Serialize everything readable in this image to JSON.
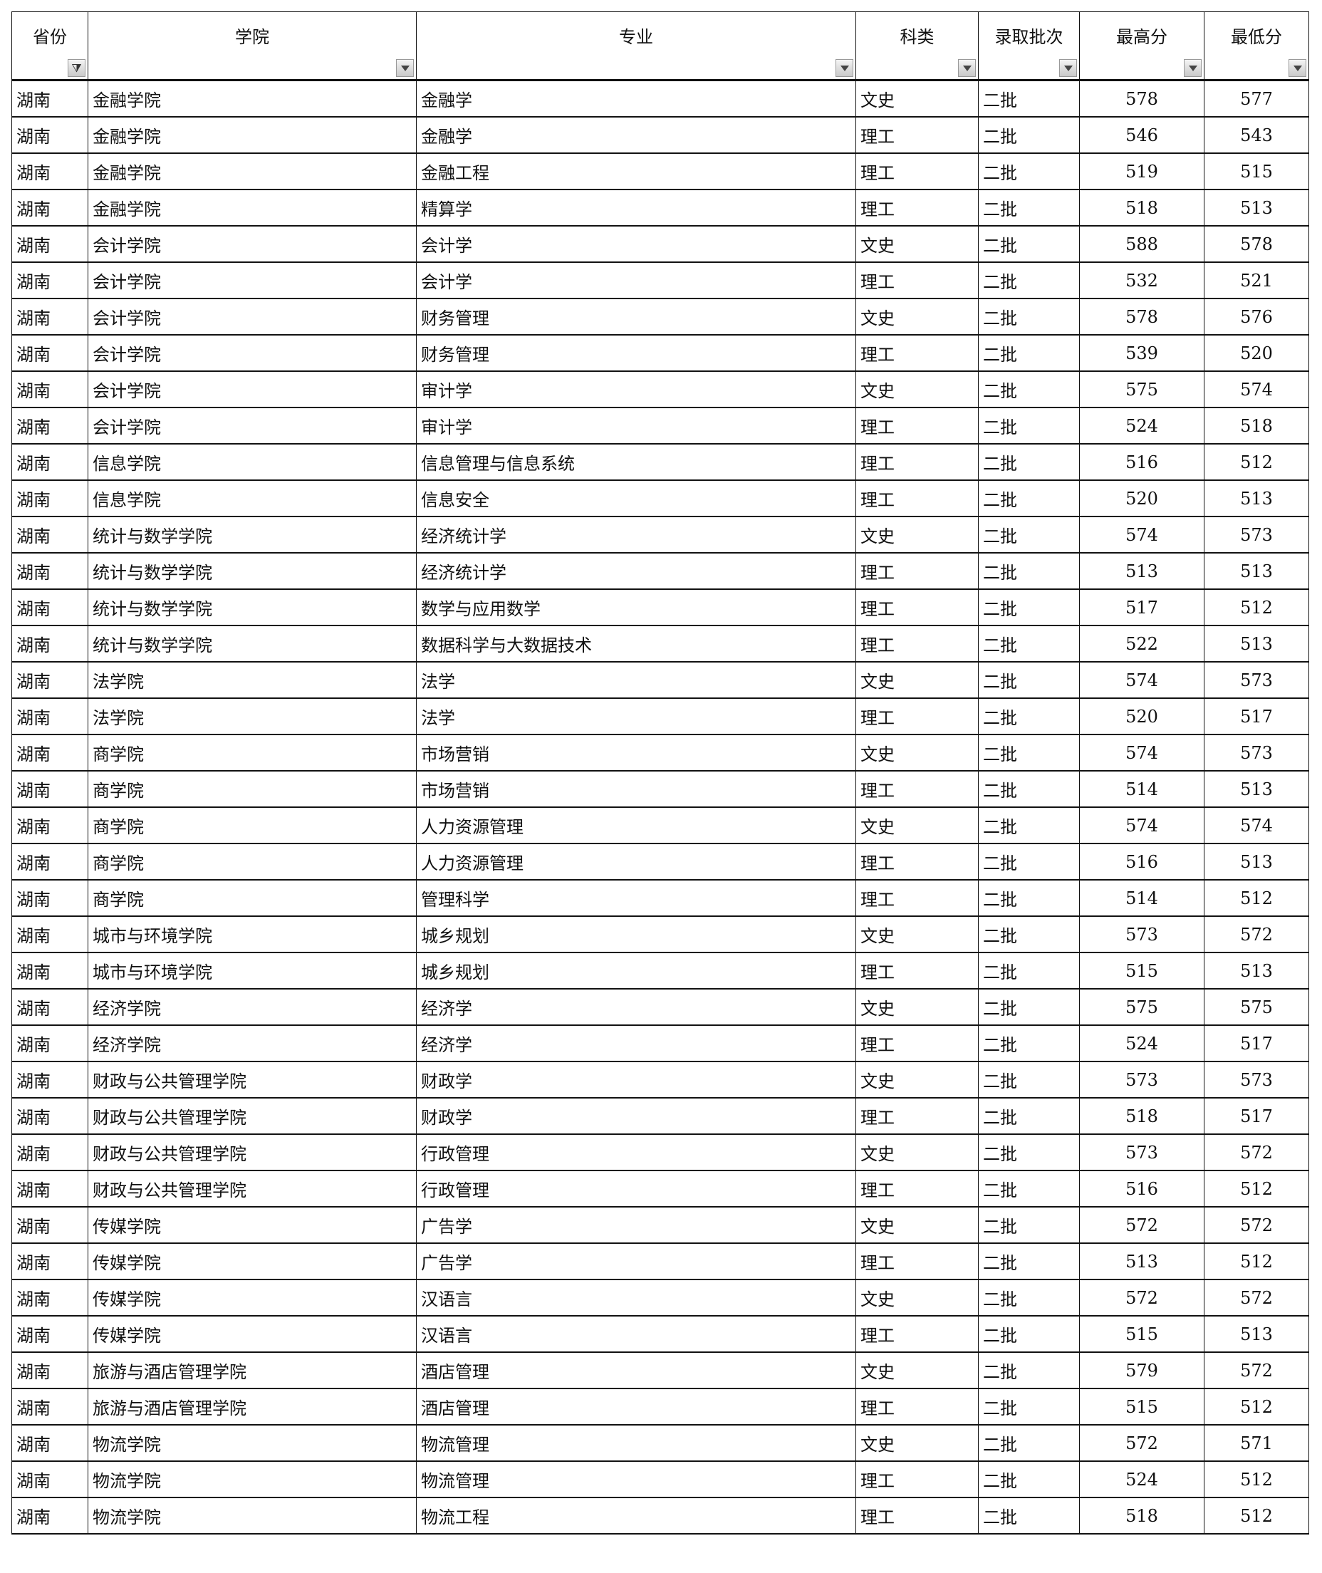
{
  "headers": [
    {
      "label": "省份",
      "filter": "active-filter-icon"
    },
    {
      "label": "学院",
      "filter": "dropdown-icon"
    },
    {
      "label": "专业",
      "filter": "dropdown-icon"
    },
    {
      "label": "科类",
      "filter": "dropdown-icon"
    },
    {
      "label": "录取批次",
      "filter": "dropdown-icon"
    },
    {
      "label": "最高分",
      "filter": "dropdown-icon"
    },
    {
      "label": "最低分",
      "filter": "dropdown-icon"
    }
  ],
  "rows": [
    [
      "湖南",
      "金融学院",
      "金融学",
      "文史",
      "二批",
      "578",
      "577"
    ],
    [
      "湖南",
      "金融学院",
      "金融学",
      "理工",
      "二批",
      "546",
      "543"
    ],
    [
      "湖南",
      "金融学院",
      "金融工程",
      "理工",
      "二批",
      "519",
      "515"
    ],
    [
      "湖南",
      "金融学院",
      "精算学",
      "理工",
      "二批",
      "518",
      "513"
    ],
    [
      "湖南",
      "会计学院",
      "会计学",
      "文史",
      "二批",
      "588",
      "578"
    ],
    [
      "湖南",
      "会计学院",
      "会计学",
      "理工",
      "二批",
      "532",
      "521"
    ],
    [
      "湖南",
      "会计学院",
      "财务管理",
      "文史",
      "二批",
      "578",
      "576"
    ],
    [
      "湖南",
      "会计学院",
      "财务管理",
      "理工",
      "二批",
      "539",
      "520"
    ],
    [
      "湖南",
      "会计学院",
      "审计学",
      "文史",
      "二批",
      "575",
      "574"
    ],
    [
      "湖南",
      "会计学院",
      "审计学",
      "理工",
      "二批",
      "524",
      "518"
    ],
    [
      "湖南",
      "信息学院",
      "信息管理与信息系统",
      "理工",
      "二批",
      "516",
      "512"
    ],
    [
      "湖南",
      "信息学院",
      "信息安全",
      "理工",
      "二批",
      "520",
      "513"
    ],
    [
      "湖南",
      "统计与数学学院",
      "经济统计学",
      "文史",
      "二批",
      "574",
      "573"
    ],
    [
      "湖南",
      "统计与数学学院",
      "经济统计学",
      "理工",
      "二批",
      "513",
      "513"
    ],
    [
      "湖南",
      "统计与数学学院",
      "数学与应用数学",
      "理工",
      "二批",
      "517",
      "512"
    ],
    [
      "湖南",
      "统计与数学学院",
      "数据科学与大数据技术",
      "理工",
      "二批",
      "522",
      "513"
    ],
    [
      "湖南",
      "法学院",
      "法学",
      "文史",
      "二批",
      "574",
      "573"
    ],
    [
      "湖南",
      "法学院",
      "法学",
      "理工",
      "二批",
      "520",
      "517"
    ],
    [
      "湖南",
      "商学院",
      "市场营销",
      "文史",
      "二批",
      "574",
      "573"
    ],
    [
      "湖南",
      "商学院",
      "市场营销",
      "理工",
      "二批",
      "514",
      "513"
    ],
    [
      "湖南",
      "商学院",
      "人力资源管理",
      "文史",
      "二批",
      "574",
      "574"
    ],
    [
      "湖南",
      "商学院",
      "人力资源管理",
      "理工",
      "二批",
      "516",
      "513"
    ],
    [
      "湖南",
      "商学院",
      "管理科学",
      "理工",
      "二批",
      "514",
      "512"
    ],
    [
      "湖南",
      "城市与环境学院",
      "城乡规划",
      "文史",
      "二批",
      "573",
      "572"
    ],
    [
      "湖南",
      "城市与环境学院",
      "城乡规划",
      "理工",
      "二批",
      "515",
      "513"
    ],
    [
      "湖南",
      "经济学院",
      "经济学",
      "文史",
      "二批",
      "575",
      "575"
    ],
    [
      "湖南",
      "经济学院",
      "经济学",
      "理工",
      "二批",
      "524",
      "517"
    ],
    [
      "湖南",
      "财政与公共管理学院",
      "财政学",
      "文史",
      "二批",
      "573",
      "573"
    ],
    [
      "湖南",
      "财政与公共管理学院",
      "财政学",
      "理工",
      "二批",
      "518",
      "517"
    ],
    [
      "湖南",
      "财政与公共管理学院",
      "行政管理",
      "文史",
      "二批",
      "573",
      "572"
    ],
    [
      "湖南",
      "财政与公共管理学院",
      "行政管理",
      "理工",
      "二批",
      "516",
      "512"
    ],
    [
      "湖南",
      "传媒学院",
      "广告学",
      "文史",
      "二批",
      "572",
      "572"
    ],
    [
      "湖南",
      "传媒学院",
      "广告学",
      "理工",
      "二批",
      "513",
      "512"
    ],
    [
      "湖南",
      "传媒学院",
      "汉语言",
      "文史",
      "二批",
      "572",
      "572"
    ],
    [
      "湖南",
      "传媒学院",
      "汉语言",
      "理工",
      "二批",
      "515",
      "513"
    ],
    [
      "湖南",
      "旅游与酒店管理学院",
      "酒店管理",
      "文史",
      "二批",
      "579",
      "572"
    ],
    [
      "湖南",
      "旅游与酒店管理学院",
      "酒店管理",
      "理工",
      "二批",
      "515",
      "512"
    ],
    [
      "湖南",
      "物流学院",
      "物流管理",
      "文史",
      "二批",
      "572",
      "571"
    ],
    [
      "湖南",
      "物流学院",
      "物流管理",
      "理工",
      "二批",
      "524",
      "512"
    ],
    [
      "湖南",
      "物流学院",
      "物流工程",
      "理工",
      "二批",
      "518",
      "512"
    ]
  ]
}
